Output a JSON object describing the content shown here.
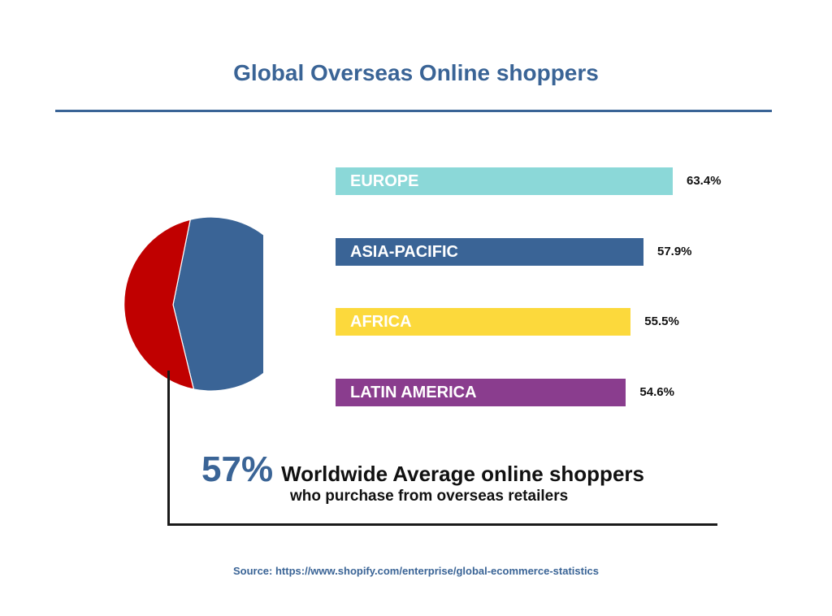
{
  "title": "Global Overseas Online shoppers",
  "chart_data": [
    {
      "type": "bar",
      "orientation": "horizontal",
      "categories": [
        "EUROPE",
        "ASIA-PACIFIC",
        "AFRICA",
        "LATIN AMERICA"
      ],
      "values": [
        63.4,
        57.9,
        55.5,
        54.6
      ],
      "value_labels": [
        "63.4%",
        "57.9%",
        "55.5%",
        "54.6%"
      ],
      "colors": [
        "#8bd8d8",
        "#3a6496",
        "#fcd93c",
        "#8a3d8e"
      ],
      "unit": "%",
      "grid": false,
      "legend": "none"
    },
    {
      "type": "pie",
      "values": [
        57,
        43
      ],
      "colors": [
        "#3a6496",
        "#c00000"
      ],
      "legend": "none"
    }
  ],
  "headline": {
    "value": "57%",
    "text": "Worldwide Average online shoppers",
    "subtext": "who purchase from overseas retailers"
  },
  "source": "Source: https://www.shopify.com/enterprise/global-ecommerce-statistics",
  "colors": {
    "accent": "#3a6496",
    "text": "#111111"
  }
}
